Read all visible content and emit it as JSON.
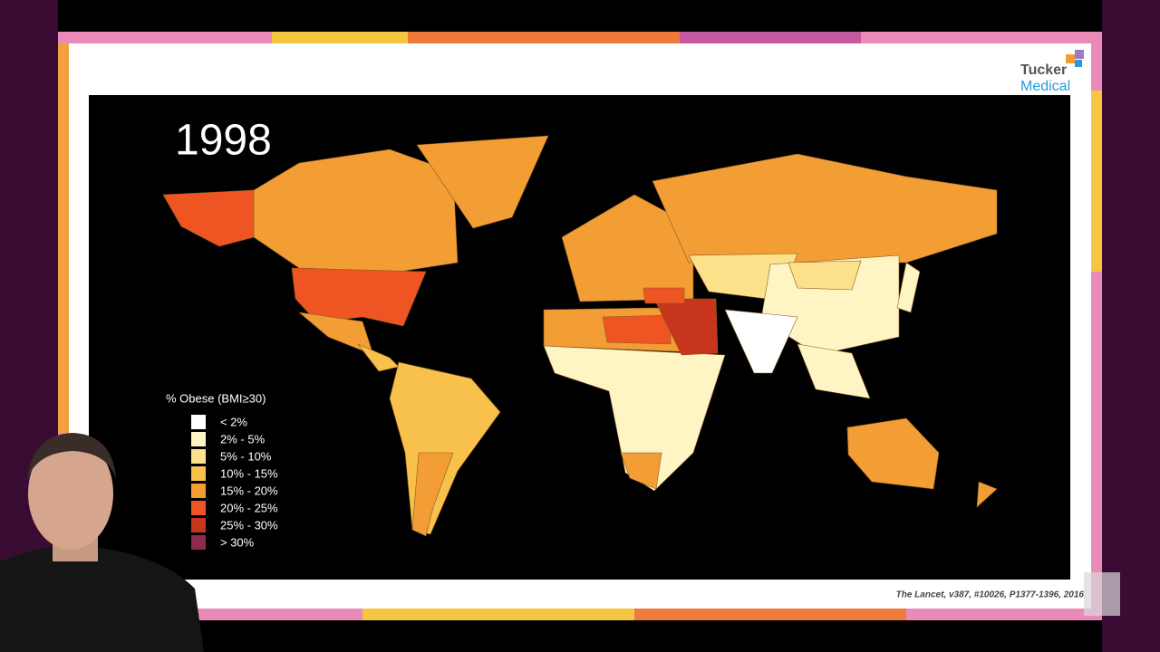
{
  "slide": {
    "year": "1998",
    "legend": {
      "title": "% Obese (BMI≥30)",
      "items": [
        {
          "label": "< 2%",
          "color": "#ffffff"
        },
        {
          "label": "2% - 5%",
          "color": "#fff4c4"
        },
        {
          "label": "5% - 10%",
          "color": "#fde08a"
        },
        {
          "label": "10% - 15%",
          "color": "#f8c14c"
        },
        {
          "label": "15% - 20%",
          "color": "#f39d35"
        },
        {
          "label": "20% - 25%",
          "color": "#ee5522"
        },
        {
          "label": "25% - 30%",
          "color": "#c7361c"
        },
        {
          "label": "> 30%",
          "color": "#8e2a4c"
        }
      ]
    },
    "citation": "The Lancet, v387, #10026, P1377-1396, 2016"
  },
  "logo": {
    "line1": "Tucker",
    "line2": "Medical"
  }
}
